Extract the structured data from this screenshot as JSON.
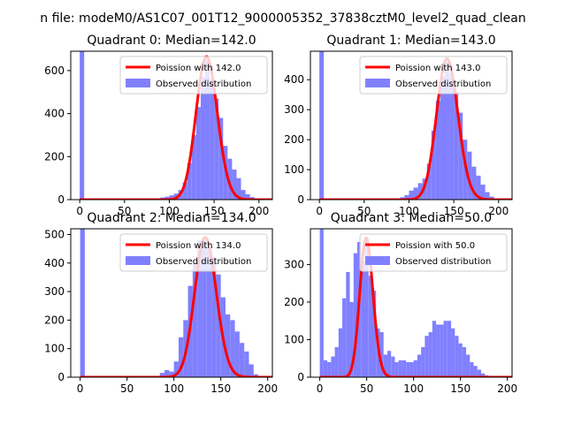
{
  "suptitle": "n file: modeM0/AS1C07_001T12_9000005352_37838cztM0_level2_quad_clean",
  "colors": {
    "poisson": "#ff0000",
    "observed": "#8080ff",
    "axis": "#000000"
  },
  "chart_data": [
    {
      "type": "bar",
      "title": "Quadrant 0: Median=142.0",
      "xlim": [
        -10,
        215
      ],
      "ylim": [
        0,
        690
      ],
      "xticks": [
        0,
        50,
        100,
        150,
        200
      ],
      "yticks": [
        0,
        200,
        400,
        600
      ],
      "xticklabels": [
        "0",
        "50",
        "100",
        "150",
        "200"
      ],
      "yticklabels": [
        "0",
        "200",
        "400",
        "600"
      ],
      "bin_width": 5,
      "legend": {
        "position": "top-right",
        "entries": [
          {
            "label": "Poission with 142.0",
            "kind": "line"
          },
          {
            "label": "Observed distribution",
            "kind": "patch"
          }
        ]
      },
      "histogram": {
        "series_name": "Observed distribution",
        "bins": [
          0,
          80,
          85,
          90,
          95,
          100,
          105,
          110,
          115,
          120,
          125,
          130,
          135,
          140,
          145,
          150,
          155,
          160,
          165,
          170,
          175,
          180,
          185,
          190,
          195,
          200
        ],
        "counts": [
          690,
          3,
          6,
          10,
          14,
          20,
          28,
          45,
          80,
          170,
          300,
          430,
          570,
          650,
          560,
          470,
          380,
          250,
          190,
          140,
          100,
          45,
          25,
          12,
          5,
          2
        ]
      },
      "poisson": {
        "series_name": "Poission with 142.0",
        "mean": 142.0,
        "scale": 665
      }
    },
    {
      "type": "bar",
      "title": "Quadrant 1: Median=143.0",
      "xlim": [
        -10,
        215
      ],
      "ylim": [
        0,
        495
      ],
      "xticks": [
        0,
        50,
        100,
        150,
        200
      ],
      "yticks": [
        0,
        100,
        200,
        300,
        400
      ],
      "xticklabels": [
        "0",
        "50",
        "100",
        "150",
        "200"
      ],
      "yticklabels": [
        "0",
        "100",
        "200",
        "300",
        "400"
      ],
      "bin_width": 5,
      "legend": {
        "position": "top-right",
        "entries": [
          {
            "label": "Poission with 143.0",
            "kind": "line"
          },
          {
            "label": "Observed distribution",
            "kind": "patch"
          }
        ]
      },
      "histogram": {
        "series_name": "Observed distribution",
        "bins": [
          0,
          85,
          90,
          95,
          100,
          105,
          110,
          115,
          120,
          125,
          130,
          135,
          140,
          145,
          150,
          155,
          160,
          165,
          170,
          175,
          180,
          185,
          190,
          195
        ],
        "counts": [
          495,
          4,
          8,
          15,
          30,
          40,
          55,
          70,
          120,
          230,
          330,
          410,
          460,
          420,
          360,
          290,
          200,
          160,
          110,
          80,
          50,
          25,
          10,
          4
        ]
      },
      "poisson": {
        "series_name": "Poission with 143.0",
        "mean": 143.0,
        "scale": 470
      }
    },
    {
      "type": "bar",
      "title": "Quadrant 2: Median=134.0",
      "xlim": [
        -10,
        205
      ],
      "ylim": [
        0,
        520
      ],
      "xticks": [
        0,
        50,
        100,
        150,
        200
      ],
      "yticks": [
        0,
        100,
        200,
        300,
        400,
        500
      ],
      "xticklabels": [
        "0",
        "50",
        "100",
        "150",
        "200"
      ],
      "yticklabels": [
        "0",
        "100",
        "200",
        "300",
        "400",
        "500"
      ],
      "bin_width": 5,
      "legend": {
        "position": "top-right",
        "entries": [
          {
            "label": "Poission with 134.0",
            "kind": "line"
          },
          {
            "label": "Observed distribution",
            "kind": "patch"
          }
        ]
      },
      "histogram": {
        "series_name": "Observed distribution",
        "bins": [
          0,
          80,
          85,
          90,
          95,
          100,
          105,
          110,
          115,
          120,
          125,
          130,
          135,
          140,
          145,
          150,
          155,
          160,
          165,
          170,
          175,
          180,
          185
        ],
        "counts": [
          520,
          3,
          15,
          25,
          20,
          55,
          140,
          200,
          320,
          400,
          480,
          490,
          450,
          420,
          360,
          280,
          220,
          200,
          160,
          120,
          90,
          45,
          10
        ]
      },
      "poisson": {
        "series_name": "Poission with 134.0",
        "mean": 134.0,
        "scale": 490
      }
    },
    {
      "type": "bar",
      "title": "Quadrant 3: Median=50.0",
      "xlim": [
        -10,
        205
      ],
      "ylim": [
        0,
        395
      ],
      "xticks": [
        0,
        50,
        100,
        150,
        200
      ],
      "yticks": [
        0,
        100,
        200,
        300
      ],
      "xticklabels": [
        "0",
        "50",
        "100",
        "150",
        "200"
      ],
      "yticklabels": [
        "0",
        "100",
        "200",
        "300"
      ],
      "bin_width": 4,
      "legend": {
        "position": "top-right",
        "entries": [
          {
            "label": "Poission with 50.0",
            "kind": "line"
          },
          {
            "label": "Observed distribution",
            "kind": "patch"
          }
        ]
      },
      "histogram": {
        "series_name": "Observed distribution",
        "bins": [
          0,
          4,
          8,
          12,
          16,
          20,
          24,
          28,
          32,
          36,
          40,
          44,
          48,
          52,
          56,
          60,
          64,
          68,
          72,
          76,
          80,
          84,
          88,
          92,
          96,
          100,
          104,
          108,
          112,
          116,
          120,
          124,
          128,
          132,
          136,
          140,
          144,
          148,
          152,
          156,
          160,
          164,
          168,
          172,
          176
        ],
        "counts": [
          395,
          45,
          40,
          55,
          80,
          130,
          210,
          280,
          200,
          330,
          360,
          310,
          370,
          270,
          230,
          130,
          120,
          60,
          70,
          55,
          40,
          45,
          45,
          40,
          40,
          45,
          60,
          80,
          110,
          120,
          150,
          140,
          140,
          150,
          150,
          130,
          110,
          90,
          80,
          60,
          40,
          30,
          20,
          10,
          5
        ]
      },
      "poisson": {
        "series_name": "Poission with 50.0",
        "mean": 50.0,
        "scale": 370
      }
    }
  ]
}
